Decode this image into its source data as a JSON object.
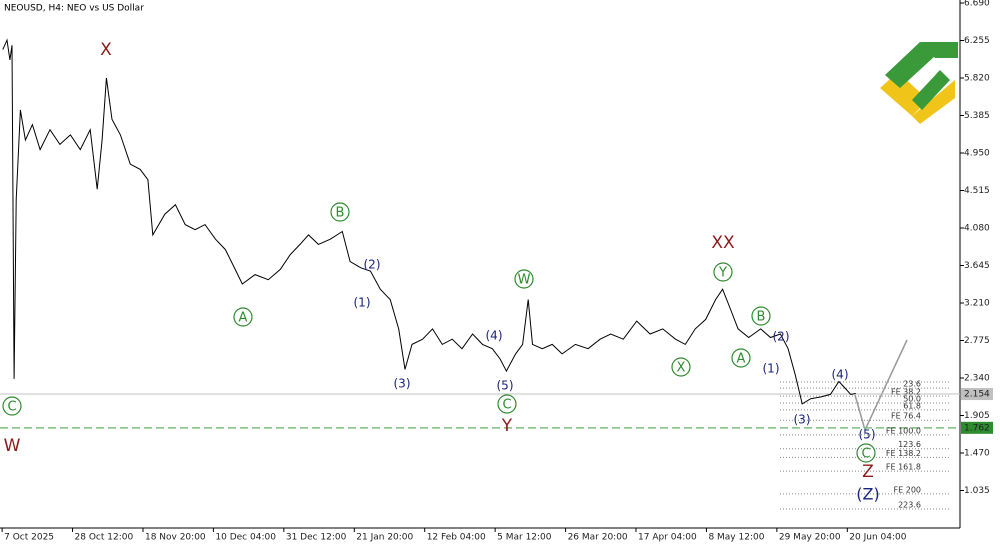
{
  "chart_data": {
    "type": "line",
    "title": "NEOUSD, H4:  NEO vs US Dollar",
    "xlim": [
      -0.03,
      13.6
    ],
    "ylim": [
      0.6,
      6.725
    ],
    "yticks": [
      {
        "value": 6.69,
        "label": "6.690"
      },
      {
        "value": 6.255,
        "label": "6.255"
      },
      {
        "value": 5.82,
        "label": "5.820"
      },
      {
        "value": 5.385,
        "label": "5.385"
      },
      {
        "value": 4.95,
        "label": "4.950"
      },
      {
        "value": 4.515,
        "label": "4.515"
      },
      {
        "value": 4.08,
        "label": "4.080"
      },
      {
        "value": 3.645,
        "label": "3.645"
      },
      {
        "value": 3.21,
        "label": "3.210"
      },
      {
        "value": 2.775,
        "label": "2.775"
      },
      {
        "value": 2.34,
        "label": "2.340"
      },
      {
        "value": 1.905,
        "label": "1.905"
      },
      {
        "value": 1.47,
        "label": "1.470"
      },
      {
        "value": 1.035,
        "label": "1.035"
      }
    ],
    "xticks": [
      {
        "value": 0,
        "label": "7 Oct 2025"
      },
      {
        "value": 1,
        "label": "28 Oct 12:00"
      },
      {
        "value": 2,
        "label": "18 Nov 20:00"
      },
      {
        "value": 3,
        "label": "10 Dec 04:00"
      },
      {
        "value": 4,
        "label": "31 Dec 12:00"
      },
      {
        "value": 5,
        "label": "21 Jan 20:00"
      },
      {
        "value": 6,
        "label": "12 Feb 04:00"
      },
      {
        "value": 7,
        "label": "5 Mar 12:00"
      },
      {
        "value": 8,
        "label": "26 Mar 20:00"
      },
      {
        "value": 9,
        "label": "17 Apr 04:00"
      },
      {
        "value": 10,
        "label": "8 May 12:00"
      },
      {
        "value": 11,
        "label": "29 May 20:00"
      },
      {
        "value": 12,
        "label": "20 Jun 04:00"
      }
    ],
    "series": [
      {
        "name": "NEOUSD",
        "color": "#000000",
        "x": [
          0.01,
          0.07,
          0.11,
          0.14,
          0.17,
          0.2,
          0.26,
          0.33,
          0.43,
          0.54,
          0.68,
          0.82,
          0.97,
          1.11,
          1.25,
          1.35,
          1.42,
          1.48,
          1.56,
          1.68,
          1.82,
          1.96,
          2.07,
          2.14,
          2.31,
          2.46,
          2.6,
          2.74,
          2.88,
          3.03,
          3.17,
          3.31,
          3.41,
          3.59,
          3.78,
          3.95,
          4.09,
          4.23,
          4.35,
          4.49,
          4.66,
          4.83,
          4.94,
          5.09,
          5.23,
          5.37,
          5.51,
          5.63,
          5.72,
          5.82,
          5.97,
          6.11,
          6.25,
          6.39,
          6.53,
          6.68,
          6.82,
          6.96,
          7.07,
          7.16,
          7.29,
          7.39,
          7.47,
          7.53,
          7.67,
          7.81,
          7.95,
          8.14,
          8.32,
          8.49,
          8.64,
          8.82,
          9.01,
          9.2,
          9.38,
          9.56,
          9.7,
          9.84,
          9.99,
          10.13,
          10.23,
          10.34,
          10.45,
          10.6,
          10.77,
          10.91,
          11.05,
          11.16,
          11.26,
          11.36,
          11.48,
          11.62,
          11.76,
          11.88,
          11.96,
          12.05,
          12.12
        ],
        "values": [
          6.15,
          6.26,
          6.03,
          6.2,
          2.33,
          4.41,
          5.45,
          5.1,
          5.28,
          4.99,
          5.22,
          5.05,
          5.16,
          4.99,
          5.22,
          4.53,
          5.1,
          5.82,
          5.34,
          5.16,
          4.82,
          4.76,
          4.64,
          4.0,
          4.24,
          4.35,
          4.12,
          4.06,
          4.12,
          3.95,
          3.83,
          3.6,
          3.43,
          3.54,
          3.48,
          3.6,
          3.77,
          3.89,
          4.0,
          3.89,
          3.95,
          4.04,
          3.69,
          3.62,
          3.58,
          3.37,
          3.25,
          2.91,
          2.44,
          2.73,
          2.79,
          2.91,
          2.73,
          2.79,
          2.68,
          2.85,
          2.73,
          2.68,
          2.56,
          2.42,
          2.62,
          2.73,
          3.25,
          2.73,
          2.68,
          2.73,
          2.62,
          2.73,
          2.68,
          2.79,
          2.85,
          2.79,
          3.0,
          2.85,
          2.91,
          2.79,
          2.73,
          2.91,
          3.02,
          3.25,
          3.37,
          3.14,
          2.91,
          2.81,
          2.91,
          2.81,
          2.85,
          2.68,
          2.38,
          2.04,
          2.1,
          2.12,
          2.15,
          2.3,
          2.23,
          2.15,
          2.16
        ]
      }
    ],
    "current_price": 2.154,
    "level_line": 1.762,
    "fibo_levels": [
      {
        "value": 2.223,
        "label": "23.6"
      },
      {
        "value": 2.13,
        "label": "FE 38.2"
      },
      {
        "value": 2.05,
        "label": "50.0"
      },
      {
        "value": 1.97,
        "label": "61.8"
      },
      {
        "value": 1.85,
        "label": "FE 76.4"
      },
      {
        "value": 1.68,
        "label": "FE 100.0"
      },
      {
        "value": 1.52,
        "label": "123.6"
      },
      {
        "value": 1.42,
        "label": "FE 138.2"
      },
      {
        "value": 1.26,
        "label": "FE 161.8"
      },
      {
        "value": 0.996,
        "label": "FE 200"
      },
      {
        "value": 0.82,
        "label": "223.6"
      }
    ],
    "wave_labels": [
      "X",
      "C",
      "W",
      "A",
      "B",
      "(1)",
      "(2)",
      "(3)",
      "(4)",
      "(5)",
      "W",
      "C",
      "Y",
      "XX",
      "Y",
      "X",
      "A",
      "B",
      "(1)",
      "(2)",
      "(3)",
      "(4)",
      "(5)",
      "C",
      "Z",
      "(Z)"
    ]
  }
}
